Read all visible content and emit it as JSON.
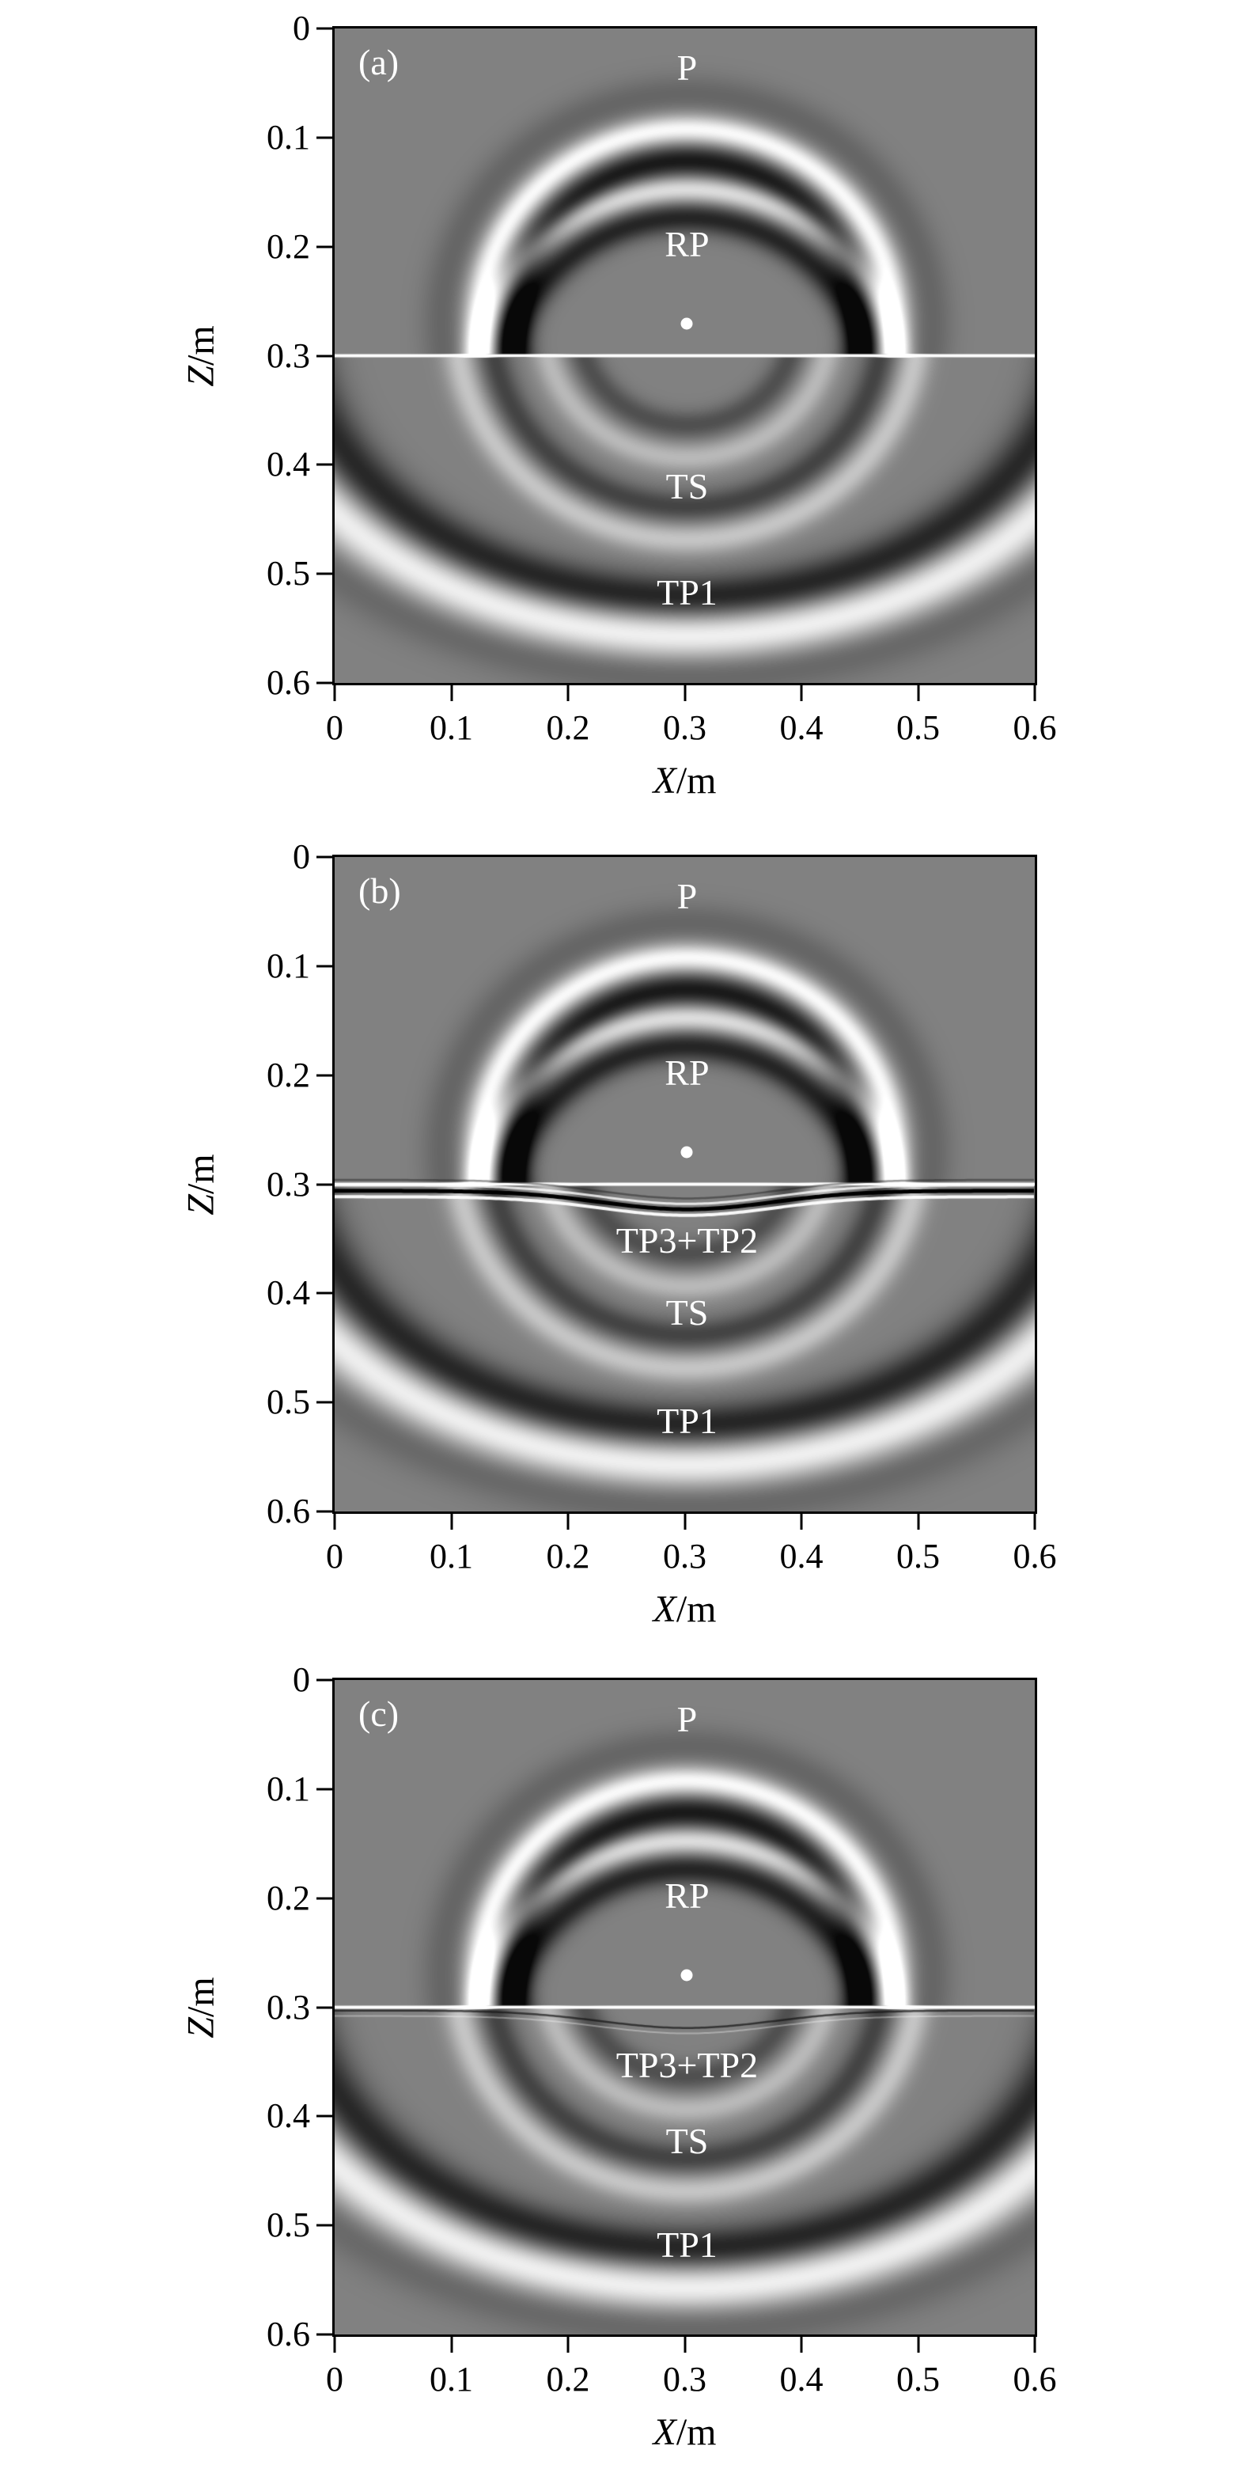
{
  "figure": {
    "background": "#ffffff",
    "field_base_gray": "#818181",
    "frame_color": "#000000",
    "annotation_color": "#ffffff",
    "tick_color": "#000000",
    "interface_line_color": "#ffffff"
  },
  "axes": {
    "x": {
      "variable": "X",
      "separator": "/",
      "unit": "m",
      "min": 0,
      "max": 0.6,
      "tick_values": [
        0,
        0.1,
        0.2,
        0.3,
        0.4,
        0.5,
        0.6
      ],
      "tick_labels": [
        "0",
        "0.1",
        "0.2",
        "0.3",
        "0.4",
        "0.5",
        "0.6"
      ]
    },
    "z": {
      "variable": "Z",
      "separator": "/",
      "unit": "m",
      "min": 0,
      "max": 0.6,
      "tick_values": [
        0,
        0.1,
        0.2,
        0.3,
        0.4,
        0.5,
        0.6
      ],
      "tick_labels": [
        "0",
        "0.1",
        "0.2",
        "0.3",
        "0.4",
        "0.5",
        "0.6"
      ]
    }
  },
  "chart_data": [
    {
      "type": "heatmap",
      "panel": "a",
      "label": "(a)",
      "xlabel": "X/m",
      "ylabel": "Z/m",
      "xlim": [
        0,
        0.6
      ],
      "zlim": [
        0,
        0.6
      ],
      "interface_z": 0.3,
      "source_marker": {
        "x": 0.302,
        "z": 0.2705
      },
      "annotations": [
        {
          "text": "P",
          "x": 0.302,
          "z": 0.036
        },
        {
          "text": "RP",
          "x": 0.302,
          "z": 0.198
        },
        {
          "text": "TS",
          "x": 0.302,
          "z": 0.42
        },
        {
          "text": "TP1",
          "x": 0.302,
          "z": 0.517
        }
      ],
      "wavefronts": [
        {
          "name": "P-outer-trough",
          "cx": 0.302,
          "cz": 0.2705,
          "rx": 0.21,
          "rz": 0.21,
          "w": 0.018,
          "a": -0.22,
          "clip": "up"
        },
        {
          "name": "P-crest",
          "cx": 0.302,
          "cz": 0.2705,
          "rx": 0.178,
          "rz": 0.178,
          "w": 0.013,
          "a": 1.0,
          "clip": "up"
        },
        {
          "name": "P-trough",
          "cx": 0.302,
          "cz": 0.2705,
          "rx": 0.149,
          "rz": 0.149,
          "w": 0.015,
          "a": -0.85,
          "clip": "up"
        },
        {
          "name": "RP-crest",
          "cx": 0.302,
          "cz": 0.3295,
          "rx": 0.182,
          "rz": 0.182,
          "w": 0.012,
          "a": 0.8,
          "clip": "up"
        },
        {
          "name": "RP-trough",
          "cx": 0.302,
          "cz": 0.3295,
          "rx": 0.156,
          "rz": 0.156,
          "w": 0.014,
          "a": -0.75,
          "clip": "up"
        },
        {
          "name": "TS-inner-trough",
          "cx": 0.302,
          "cz": 0.2705,
          "rx": 0.093,
          "rz": 0.093,
          "w": 0.013,
          "a": -0.4,
          "clip": "dn"
        },
        {
          "name": "TS-inner-crest",
          "cx": 0.302,
          "cz": 0.2705,
          "rx": 0.123,
          "rz": 0.123,
          "w": 0.013,
          "a": 0.45,
          "clip": "dn"
        },
        {
          "name": "TS-trough",
          "cx": 0.302,
          "cz": 0.2705,
          "rx": 0.168,
          "rz": 0.168,
          "w": 0.014,
          "a": -0.5,
          "clip": "dn"
        },
        {
          "name": "TS-crest",
          "cx": 0.302,
          "cz": 0.2705,
          "rx": 0.198,
          "rz": 0.198,
          "w": 0.014,
          "a": 0.55,
          "clip": "dn"
        },
        {
          "name": "TP1-trough",
          "cx": 0.302,
          "cz": 0.2705,
          "rx": 0.335,
          "rz": 0.2515,
          "w": 0.02,
          "a": -0.8,
          "clip": "dn"
        },
        {
          "name": "TP1-crest",
          "cx": 0.302,
          "cz": 0.2705,
          "rx": 0.378,
          "rz": 0.2865,
          "w": 0.022,
          "a": 0.95,
          "clip": "dn"
        },
        {
          "name": "TP1-outer-trough",
          "cx": 0.302,
          "cz": 0.2705,
          "rx": 0.42,
          "rz": 0.32,
          "w": 0.022,
          "a": -0.25,
          "clip": "dn"
        }
      ],
      "head_wave": null
    },
    {
      "type": "heatmap",
      "panel": "b",
      "label": "(b)",
      "xlabel": "X/m",
      "ylabel": "Z/m",
      "xlim": [
        0,
        0.6
      ],
      "zlim": [
        0,
        0.6
      ],
      "interface_z": 0.3,
      "source_marker": {
        "x": 0.302,
        "z": 0.2705
      },
      "annotations": [
        {
          "text": "P",
          "x": 0.302,
          "z": 0.036
        },
        {
          "text": "RP",
          "x": 0.302,
          "z": 0.198
        },
        {
          "text": "TP3+TP2",
          "x": 0.302,
          "z": 0.352
        },
        {
          "text": "TS",
          "x": 0.302,
          "z": 0.418
        },
        {
          "text": "TP1",
          "x": 0.302,
          "z": 0.517
        }
      ],
      "wavefronts": [
        {
          "name": "P-outer-trough",
          "cx": 0.302,
          "cz": 0.2705,
          "rx": 0.21,
          "rz": 0.21,
          "w": 0.018,
          "a": -0.22,
          "clip": "up"
        },
        {
          "name": "P-crest",
          "cx": 0.302,
          "cz": 0.2705,
          "rx": 0.178,
          "rz": 0.178,
          "w": 0.013,
          "a": 1.0,
          "clip": "up"
        },
        {
          "name": "P-trough",
          "cx": 0.302,
          "cz": 0.2705,
          "rx": 0.149,
          "rz": 0.149,
          "w": 0.015,
          "a": -0.85,
          "clip": "up"
        },
        {
          "name": "RP-crest",
          "cx": 0.302,
          "cz": 0.3295,
          "rx": 0.182,
          "rz": 0.182,
          "w": 0.012,
          "a": 0.8,
          "clip": "up"
        },
        {
          "name": "RP-trough",
          "cx": 0.302,
          "cz": 0.3295,
          "rx": 0.156,
          "rz": 0.156,
          "w": 0.014,
          "a": -0.75,
          "clip": "up"
        },
        {
          "name": "TS-inner-trough",
          "cx": 0.302,
          "cz": 0.2705,
          "rx": 0.093,
          "rz": 0.093,
          "w": 0.013,
          "a": -0.4,
          "clip": "dn"
        },
        {
          "name": "TS-inner-crest",
          "cx": 0.302,
          "cz": 0.2705,
          "rx": 0.123,
          "rz": 0.123,
          "w": 0.013,
          "a": 0.45,
          "clip": "dn"
        },
        {
          "name": "TS-trough",
          "cx": 0.302,
          "cz": 0.2705,
          "rx": 0.168,
          "rz": 0.168,
          "w": 0.014,
          "a": -0.5,
          "clip": "dn"
        },
        {
          "name": "TS-crest",
          "cx": 0.302,
          "cz": 0.2705,
          "rx": 0.198,
          "rz": 0.198,
          "w": 0.014,
          "a": 0.55,
          "clip": "dn"
        },
        {
          "name": "TP1-trough",
          "cx": 0.302,
          "cz": 0.2705,
          "rx": 0.335,
          "rz": 0.2515,
          "w": 0.02,
          "a": -0.8,
          "clip": "dn"
        },
        {
          "name": "TP1-crest",
          "cx": 0.302,
          "cz": 0.2705,
          "rx": 0.378,
          "rz": 0.2865,
          "w": 0.022,
          "a": 0.95,
          "clip": "dn"
        },
        {
          "name": "TP1-outer-trough",
          "cx": 0.302,
          "cz": 0.2705,
          "rx": 0.42,
          "rz": 0.32,
          "w": 0.022,
          "a": -0.25,
          "clip": "dn"
        }
      ],
      "head_wave": {
        "center_x": 0.302,
        "u_half_width": 0.3,
        "u_scale": 0.35,
        "base_depth": 0.006,
        "dip_amp": 0.017,
        "layers": [
          {
            "dz": -0.01,
            "color": "#1a1a1a",
            "alpha": 0.45,
            "lw": 2.5
          },
          {
            "dz": -0.005,
            "color": "#ffffff",
            "alpha": 0.8,
            "lw": 3
          },
          {
            "dz": 0.0,
            "color": "#000000",
            "alpha": 1.0,
            "lw": 5
          },
          {
            "dz": 0.0055,
            "color": "#ffffff",
            "alpha": 0.95,
            "lw": 4
          }
        ]
      }
    },
    {
      "type": "heatmap",
      "panel": "c",
      "label": "(c)",
      "xlabel": "X/m",
      "ylabel": "Z/m",
      "xlim": [
        0,
        0.6
      ],
      "zlim": [
        0,
        0.6
      ],
      "interface_z": 0.3,
      "source_marker": {
        "x": 0.302,
        "z": 0.2705
      },
      "annotations": [
        {
          "text": "P",
          "x": 0.302,
          "z": 0.036
        },
        {
          "text": "RP",
          "x": 0.302,
          "z": 0.198
        },
        {
          "text": "TP3+TP2",
          "x": 0.302,
          "z": 0.353
        },
        {
          "text": "TS",
          "x": 0.302,
          "z": 0.423
        },
        {
          "text": "TP1",
          "x": 0.302,
          "z": 0.518
        }
      ],
      "wavefronts": [
        {
          "name": "P-outer-trough",
          "cx": 0.302,
          "cz": 0.2705,
          "rx": 0.21,
          "rz": 0.21,
          "w": 0.018,
          "a": -0.22,
          "clip": "up"
        },
        {
          "name": "P-crest",
          "cx": 0.302,
          "cz": 0.2705,
          "rx": 0.178,
          "rz": 0.178,
          "w": 0.013,
          "a": 1.0,
          "clip": "up"
        },
        {
          "name": "P-trough",
          "cx": 0.302,
          "cz": 0.2705,
          "rx": 0.149,
          "rz": 0.149,
          "w": 0.015,
          "a": -0.85,
          "clip": "up"
        },
        {
          "name": "RP-crest",
          "cx": 0.302,
          "cz": 0.3295,
          "rx": 0.182,
          "rz": 0.182,
          "w": 0.012,
          "a": 0.8,
          "clip": "up"
        },
        {
          "name": "RP-trough",
          "cx": 0.302,
          "cz": 0.3295,
          "rx": 0.156,
          "rz": 0.156,
          "w": 0.014,
          "a": -0.75,
          "clip": "up"
        },
        {
          "name": "TS-inner-trough",
          "cx": 0.302,
          "cz": 0.2705,
          "rx": 0.093,
          "rz": 0.093,
          "w": 0.013,
          "a": -0.4,
          "clip": "dn"
        },
        {
          "name": "TS-inner-crest",
          "cx": 0.302,
          "cz": 0.2705,
          "rx": 0.123,
          "rz": 0.123,
          "w": 0.013,
          "a": 0.45,
          "clip": "dn"
        },
        {
          "name": "TS-trough",
          "cx": 0.302,
          "cz": 0.2705,
          "rx": 0.168,
          "rz": 0.168,
          "w": 0.014,
          "a": -0.5,
          "clip": "dn"
        },
        {
          "name": "TS-crest",
          "cx": 0.302,
          "cz": 0.2705,
          "rx": 0.198,
          "rz": 0.198,
          "w": 0.014,
          "a": 0.55,
          "clip": "dn"
        },
        {
          "name": "TP1-trough",
          "cx": 0.302,
          "cz": 0.2705,
          "rx": 0.335,
          "rz": 0.2515,
          "w": 0.02,
          "a": -0.8,
          "clip": "dn"
        },
        {
          "name": "TP1-crest",
          "cx": 0.302,
          "cz": 0.2705,
          "rx": 0.378,
          "rz": 0.2865,
          "w": 0.022,
          "a": 0.95,
          "clip": "dn"
        },
        {
          "name": "TP1-outer-trough",
          "cx": 0.302,
          "cz": 0.2705,
          "rx": 0.42,
          "rz": 0.32,
          "w": 0.022,
          "a": -0.25,
          "clip": "dn"
        }
      ],
      "head_wave": {
        "center_x": 0.302,
        "u_half_width": 0.3,
        "u_scale": 0.35,
        "base_depth": 0.003,
        "dip_amp": 0.016,
        "layers": [
          {
            "dz": 0.0,
            "color": "#141414",
            "alpha": 0.7,
            "lw": 2.5
          },
          {
            "dz": 0.005,
            "color": "#ffffff",
            "alpha": 0.35,
            "lw": 2
          }
        ]
      }
    }
  ]
}
